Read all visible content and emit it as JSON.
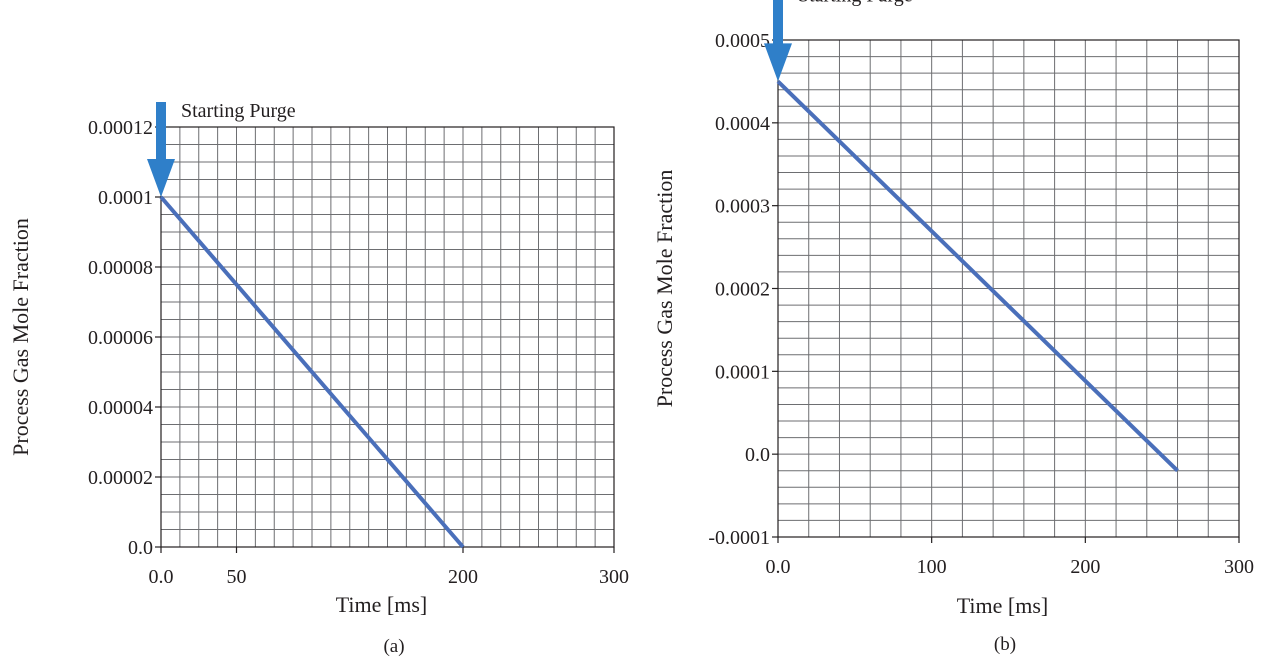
{
  "chart_data": [
    {
      "type": "line",
      "caption": "(a)",
      "xlabel": "Time [ms]",
      "ylabel": "Process Gas Mole Fraction",
      "xlim": [
        0,
        300
      ],
      "ylim": [
        0,
        0.00012
      ],
      "xticks": [
        0,
        50,
        200,
        300
      ],
      "xtick_labels": [
        "0.0",
        "50",
        "200",
        "300"
      ],
      "yticks": [
        0,
        2e-05,
        4e-05,
        6e-05,
        8e-05,
        0.0001,
        0.00012
      ],
      "ytick_labels": [
        "0.0",
        "0.00002",
        "0.00004",
        "0.00006",
        "0.00008",
        "0.0001",
        "0.00012"
      ],
      "grid": true,
      "grid_x_step": 12.5,
      "grid_y_step": 5e-06,
      "series": [
        {
          "x": [
            0,
            200
          ],
          "y": [
            0.0001,
            0
          ],
          "color": "#4a6fba"
        }
      ],
      "annotation": {
        "text": "Starting Purge",
        "x": 0,
        "y": 0.0001,
        "arrow_color": "#2f7fc9"
      }
    },
    {
      "type": "line",
      "caption": "(b)",
      "xlabel": "Time [ms]",
      "ylabel": "Process Gas Mole Fraction",
      "xlim": [
        0,
        300
      ],
      "ylim": [
        -0.0001,
        0.0005
      ],
      "xticks": [
        0,
        100,
        200,
        300
      ],
      "xtick_labels": [
        "0.0",
        "100",
        "200",
        "300"
      ],
      "yticks": [
        -0.0001,
        0,
        0.0001,
        0.0002,
        0.0003,
        0.0004,
        0.0005
      ],
      "ytick_labels": [
        "-0.0001",
        "0.0",
        "0.0001",
        "0.0002",
        "0.0003",
        "0.0004",
        "0.0005"
      ],
      "grid": true,
      "grid_x_step": 20,
      "grid_y_step": 2e-05,
      "series": [
        {
          "x": [
            0,
            260
          ],
          "y": [
            0.00045,
            -2e-05
          ],
          "color": "#4a6fba"
        }
      ],
      "annotation": {
        "text": "Starting Purge",
        "x": 0,
        "y": 0.00045,
        "arrow_color": "#2f7fc9"
      }
    }
  ]
}
